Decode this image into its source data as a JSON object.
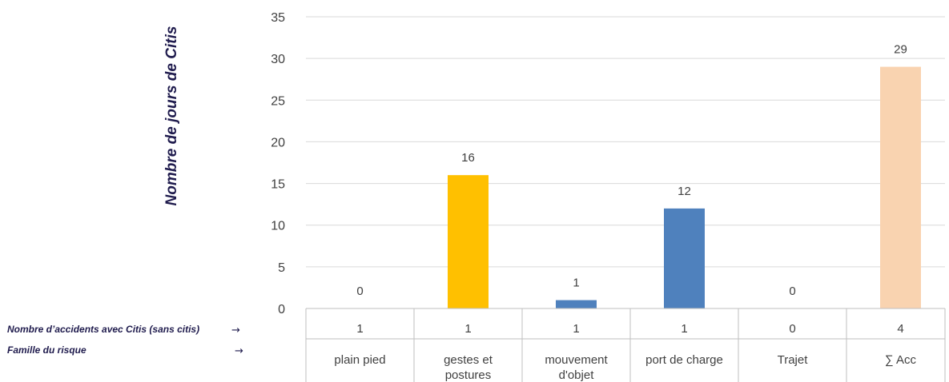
{
  "chart_data": {
    "type": "bar",
    "ylabel": "Nombre de jours de Citis",
    "ylim": [
      0,
      35
    ],
    "yticks": [
      0,
      5,
      10,
      15,
      20,
      25,
      30,
      35
    ],
    "grid": true,
    "categories": [
      "plain pied",
      "gestes et postures",
      "mouvement d'objet",
      "port de charge",
      "Trajet",
      "∑ Acc"
    ],
    "values": [
      0,
      16,
      1,
      12,
      0,
      29
    ],
    "data_labels": [
      "0",
      "16",
      "1",
      "12",
      "0",
      "29"
    ],
    "bar_colors": [
      "#4f81bd",
      "#ffc000",
      "#4f81bd",
      "#4f81bd",
      "#4f81bd",
      "#f9d3b0"
    ],
    "table": {
      "rows": [
        {
          "label": "Nombre d’accidents avec Citis (sans citis)",
          "values": [
            "1",
            "1",
            "1",
            "1",
            "0",
            "4"
          ]
        },
        {
          "label": "Famille du risque",
          "values": [
            "plain pied",
            "gestes et postures",
            "mouvement d'objet",
            "port de charge",
            "Trajet",
            "∑ Acc"
          ]
        }
      ],
      "arrow": "→"
    }
  }
}
